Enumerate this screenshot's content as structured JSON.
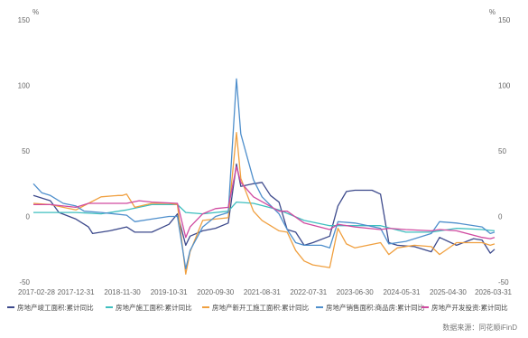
{
  "chart_data": {
    "type": "line",
    "title": "",
    "y_unit_left": "%",
    "y_unit_right": "%",
    "ylim": [
      -50,
      150
    ],
    "yticks": [
      -50,
      0,
      50,
      100,
      150
    ],
    "xlim": [
      "2017-02-28",
      "2026-03-31"
    ],
    "x_tick_labels": [
      "2017-02-28",
      "2017-12-31",
      "2018-11-30",
      "2019-10-31",
      "2020-09-30",
      "2021-08-31",
      "2022-07-31",
      "2023-06-30",
      "2024-05-31",
      "2025-04-30",
      "2026-03-31"
    ],
    "grid": false,
    "legend_position": "bottom",
    "source": "数据来源：同花顺iFinD",
    "series": [
      {
        "name": "房地产竣工面积:累计同比",
        "color": "#3d4a8c",
        "points": [
          [
            "2017-02-28",
            16
          ],
          [
            "2017-06-30",
            12
          ],
          [
            "2017-08-31",
            3
          ],
          [
            "2017-12-31",
            -2
          ],
          [
            "2018-03-31",
            -8
          ],
          [
            "2018-04-30",
            -13
          ],
          [
            "2018-08-31",
            -11
          ],
          [
            "2018-12-31",
            -8
          ],
          [
            "2019-02-28",
            -12
          ],
          [
            "2019-06-30",
            -12
          ],
          [
            "2019-10-31",
            -6
          ],
          [
            "2019-12-31",
            2
          ],
          [
            "2020-02-29",
            -22
          ],
          [
            "2020-03-31",
            -15
          ],
          [
            "2020-06-30",
            -11
          ],
          [
            "2020-09-30",
            -9
          ],
          [
            "2020-12-31",
            -5
          ],
          [
            "2021-02-28",
            40
          ],
          [
            "2021-03-31",
            23
          ],
          [
            "2021-06-30",
            25
          ],
          [
            "2021-08-31",
            26
          ],
          [
            "2021-10-31",
            16
          ],
          [
            "2021-12-31",
            11
          ],
          [
            "2022-02-28",
            -10
          ],
          [
            "2022-04-30",
            -12
          ],
          [
            "2022-06-30",
            -22
          ],
          [
            "2022-08-31",
            -20
          ],
          [
            "2022-12-31",
            -15
          ],
          [
            "2023-02-28",
            8
          ],
          [
            "2023-04-30",
            19
          ],
          [
            "2023-06-30",
            20
          ],
          [
            "2023-10-31",
            20
          ],
          [
            "2023-12-31",
            17
          ],
          [
            "2024-02-29",
            -20
          ],
          [
            "2024-04-30",
            -22
          ],
          [
            "2024-08-31",
            -23
          ],
          [
            "2024-12-31",
            -27
          ],
          [
            "2025-02-28",
            -16
          ],
          [
            "2025-06-30",
            -22
          ],
          [
            "2025-10-31",
            -17
          ],
          [
            "2025-12-31",
            -18
          ],
          [
            "2026-02-28",
            -28
          ],
          [
            "2026-03-31",
            -25
          ]
        ]
      },
      {
        "name": "房地产施工面积:累计同比",
        "color": "#3fbfbf",
        "points": [
          [
            "2017-02-28",
            3
          ],
          [
            "2017-06-30",
            3
          ],
          [
            "2017-12-31",
            3
          ],
          [
            "2018-06-30",
            2
          ],
          [
            "2018-12-31",
            5
          ],
          [
            "2019-06-30",
            9
          ],
          [
            "2019-12-31",
            9
          ],
          [
            "2020-02-29",
            3
          ],
          [
            "2020-06-30",
            2
          ],
          [
            "2020-12-31",
            4
          ],
          [
            "2021-02-28",
            11
          ],
          [
            "2021-06-30",
            10
          ],
          [
            "2021-12-31",
            5
          ],
          [
            "2022-06-30",
            -3
          ],
          [
            "2022-12-31",
            -7
          ],
          [
            "2023-06-30",
            -7
          ],
          [
            "2023-12-31",
            -7
          ],
          [
            "2024-06-30",
            -12
          ],
          [
            "2024-12-31",
            -12
          ],
          [
            "2025-06-30",
            -9
          ],
          [
            "2025-12-31",
            -10
          ],
          [
            "2026-03-31",
            -11
          ]
        ]
      },
      {
        "name": "房地产新开工施工面积:累计同比",
        "color": "#f0a040",
        "points": [
          [
            "2017-02-28",
            10
          ],
          [
            "2017-06-30",
            9
          ],
          [
            "2017-09-30",
            7
          ],
          [
            "2017-12-31",
            5
          ],
          [
            "2018-03-31",
            10
          ],
          [
            "2018-06-30",
            15
          ],
          [
            "2018-10-31",
            16
          ],
          [
            "2018-11-30",
            16
          ],
          [
            "2018-12-31",
            17
          ],
          [
            "2019-02-28",
            7
          ],
          [
            "2019-06-30",
            10
          ],
          [
            "2019-10-31",
            10
          ],
          [
            "2019-12-31",
            9
          ],
          [
            "2020-02-29",
            -44
          ],
          [
            "2020-03-31",
            -27
          ],
          [
            "2020-06-30",
            -3
          ],
          [
            "2020-09-30",
            -2
          ],
          [
            "2020-12-31",
            -1
          ],
          [
            "2021-02-28",
            64
          ],
          [
            "2021-03-31",
            29
          ],
          [
            "2021-06-30",
            4
          ],
          [
            "2021-08-31",
            -3
          ],
          [
            "2021-12-31",
            -11
          ],
          [
            "2022-02-28",
            -12
          ],
          [
            "2022-04-30",
            -26
          ],
          [
            "2022-06-30",
            -34
          ],
          [
            "2022-08-31",
            -37
          ],
          [
            "2022-12-31",
            -39
          ],
          [
            "2023-02-28",
            -9
          ],
          [
            "2023-04-30",
            -21
          ],
          [
            "2023-06-30",
            -24
          ],
          [
            "2023-12-31",
            -20
          ],
          [
            "2024-02-29",
            -29
          ],
          [
            "2024-04-30",
            -24
          ],
          [
            "2024-08-31",
            -22
          ],
          [
            "2024-12-31",
            -23
          ],
          [
            "2025-02-28",
            -29
          ],
          [
            "2025-06-30",
            -20
          ],
          [
            "2025-12-31",
            -20
          ],
          [
            "2026-02-28",
            -22
          ],
          [
            "2026-03-31",
            -21
          ]
        ]
      },
      {
        "name": "房地产销售面积:商品房:累计同比",
        "color": "#4f8fcc",
        "points": [
          [
            "2017-02-28",
            25
          ],
          [
            "2017-04-30",
            18
          ],
          [
            "2017-06-30",
            16
          ],
          [
            "2017-09-30",
            10
          ],
          [
            "2017-12-31",
            8
          ],
          [
            "2018-02-28",
            4
          ],
          [
            "2018-06-30",
            3
          ],
          [
            "2018-12-31",
            1
          ],
          [
            "2019-02-28",
            -4
          ],
          [
            "2019-06-30",
            -2
          ],
          [
            "2019-10-31",
            0
          ],
          [
            "2019-12-31",
            0
          ],
          [
            "2020-02-29",
            -40
          ],
          [
            "2020-03-31",
            -26
          ],
          [
            "2020-06-30",
            -8
          ],
          [
            "2020-09-30",
            0
          ],
          [
            "2020-12-31",
            3
          ],
          [
            "2021-02-28",
            105
          ],
          [
            "2021-03-31",
            63
          ],
          [
            "2021-06-30",
            28
          ],
          [
            "2021-08-31",
            15
          ],
          [
            "2021-12-31",
            2
          ],
          [
            "2022-02-28",
            -10
          ],
          [
            "2022-04-30",
            -20
          ],
          [
            "2022-06-30",
            -22
          ],
          [
            "2022-10-31",
            -22
          ],
          [
            "2022-12-31",
            -24
          ],
          [
            "2023-02-28",
            -4
          ],
          [
            "2023-06-30",
            -5
          ],
          [
            "2023-12-31",
            -9
          ],
          [
            "2024-02-29",
            -21
          ],
          [
            "2024-06-30",
            -19
          ],
          [
            "2024-12-31",
            -13
          ],
          [
            "2025-02-28",
            -4
          ],
          [
            "2025-06-30",
            -5
          ],
          [
            "2025-12-31",
            -8
          ],
          [
            "2026-02-28",
            -13
          ],
          [
            "2026-03-31",
            -12
          ]
        ]
      },
      {
        "name": "房地产开发投资:累计同比",
        "color": "#d04aa0",
        "points": [
          [
            "2017-02-28",
            9
          ],
          [
            "2017-06-30",
            9
          ],
          [
            "2017-12-31",
            7
          ],
          [
            "2018-03-31",
            10
          ],
          [
            "2018-06-30",
            10
          ],
          [
            "2018-12-31",
            10
          ],
          [
            "2019-03-31",
            12
          ],
          [
            "2019-06-30",
            11
          ],
          [
            "2019-12-31",
            10
          ],
          [
            "2020-02-29",
            -16
          ],
          [
            "2020-03-31",
            -8
          ],
          [
            "2020-06-30",
            2
          ],
          [
            "2020-09-30",
            6
          ],
          [
            "2020-12-31",
            7
          ],
          [
            "2021-02-28",
            38
          ],
          [
            "2021-03-31",
            26
          ],
          [
            "2021-06-30",
            15
          ],
          [
            "2021-12-31",
            4
          ],
          [
            "2022-02-28",
            4
          ],
          [
            "2022-06-30",
            -5
          ],
          [
            "2022-12-31",
            -10
          ],
          [
            "2023-02-28",
            -6
          ],
          [
            "2023-06-30",
            -8
          ],
          [
            "2023-12-31",
            -10
          ],
          [
            "2024-02-29",
            -9
          ],
          [
            "2024-06-30",
            -10
          ],
          [
            "2024-12-31",
            -11
          ],
          [
            "2025-02-28",
            -10
          ],
          [
            "2025-06-30",
            -11
          ],
          [
            "2025-12-31",
            -16
          ],
          [
            "2026-02-28",
            -17
          ],
          [
            "2026-03-31",
            -16
          ]
        ]
      }
    ]
  }
}
